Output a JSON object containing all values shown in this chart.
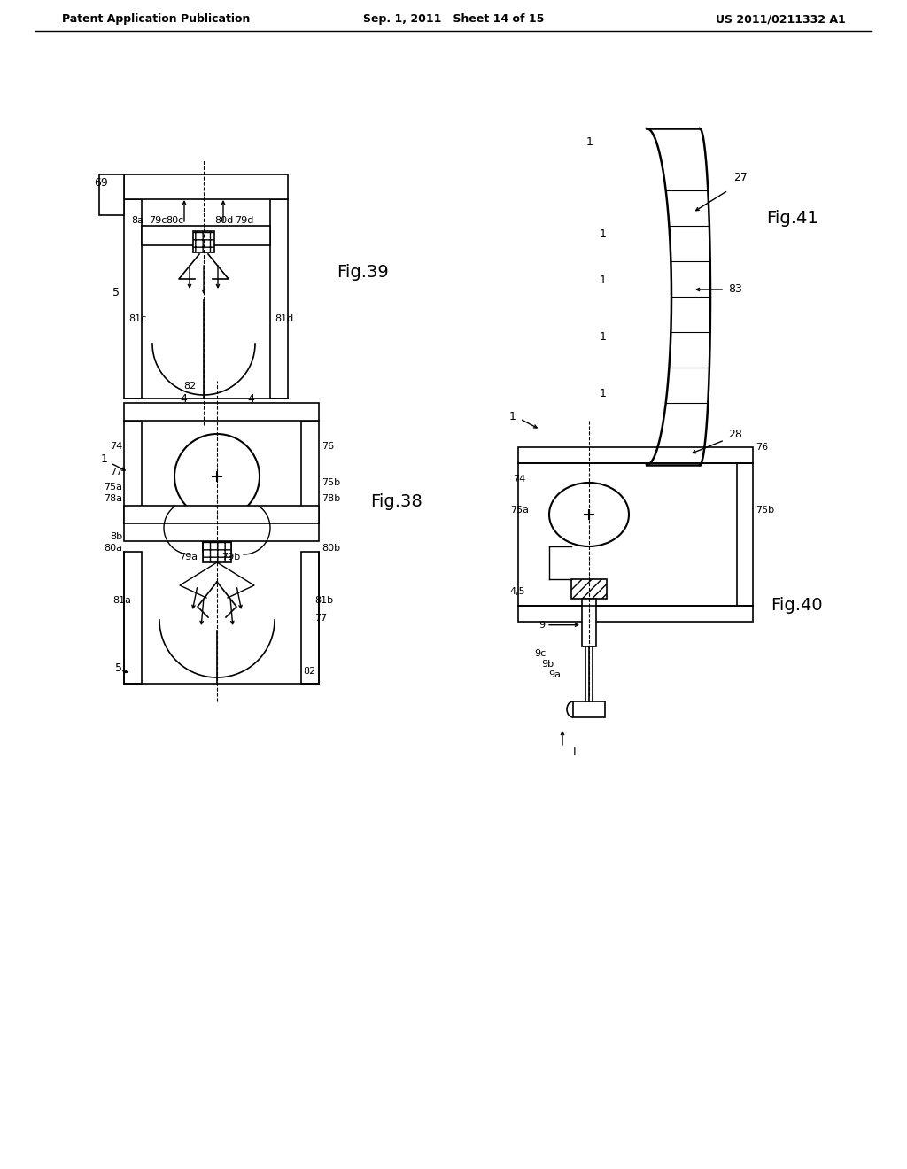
{
  "header_left": "Patent Application Publication",
  "header_center": "Sep. 1, 2011   Sheet 14 of 15",
  "header_right": "US 2011/0211332 A1",
  "background": "#ffffff",
  "lc": "#000000",
  "fig39_label": "Fig.39",
  "fig38_label": "Fig.38",
  "fig41_label": "Fig.41",
  "fig40_label": "Fig.40"
}
